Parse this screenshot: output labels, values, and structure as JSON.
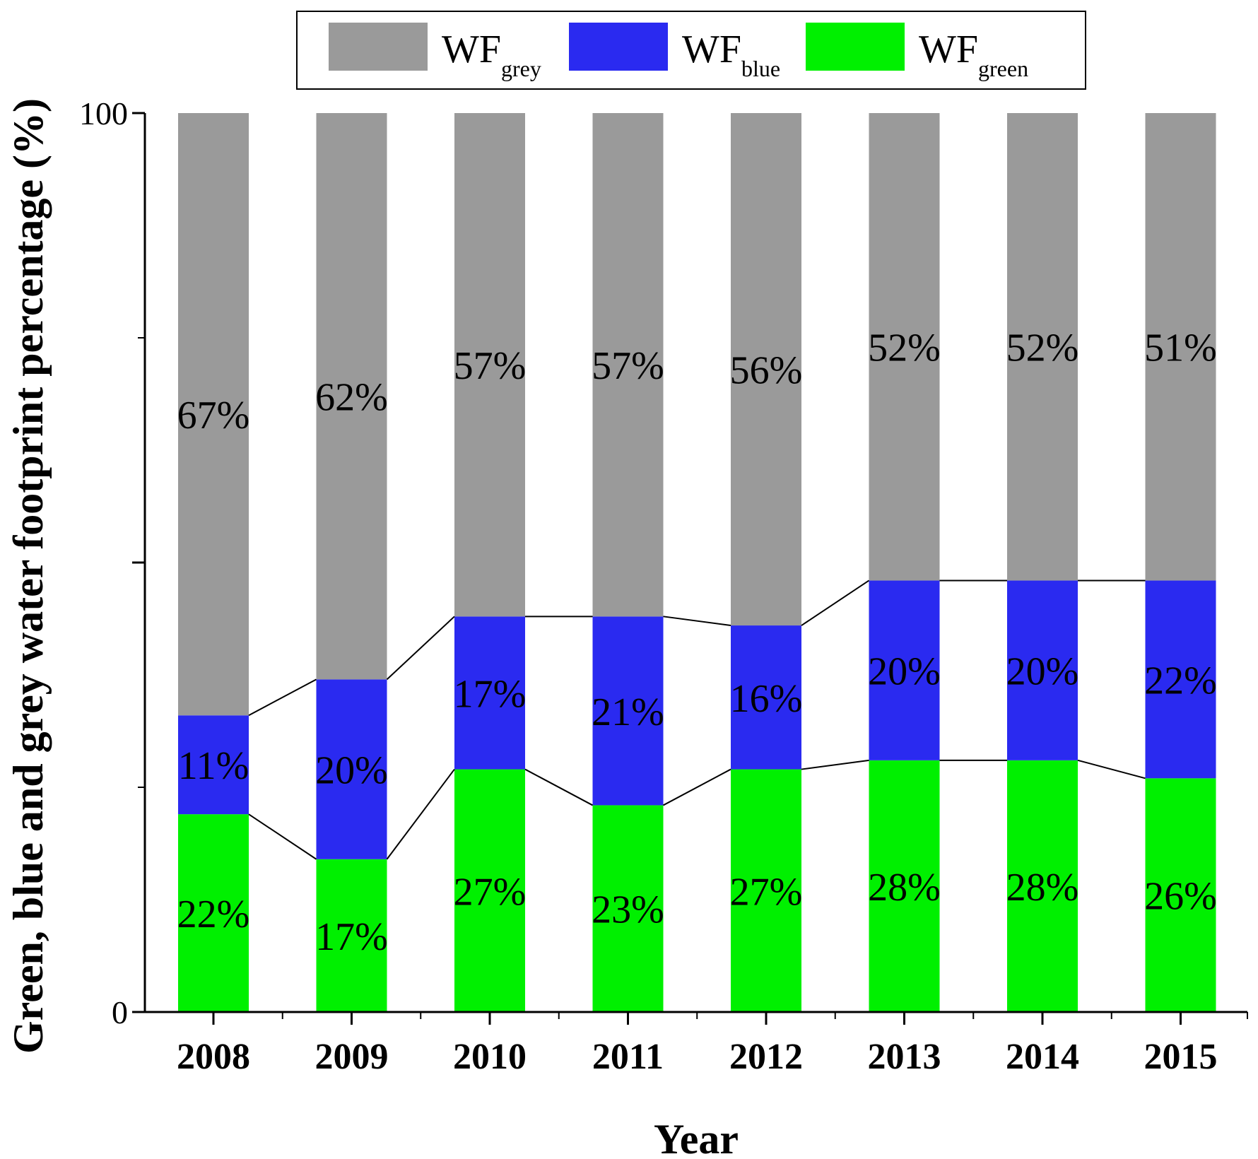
{
  "chart_data": {
    "type": "bar",
    "stacked": true,
    "categories": [
      "2008",
      "2009",
      "2010",
      "2011",
      "2012",
      "2013",
      "2014",
      "2015"
    ],
    "series": [
      {
        "name": "WF green",
        "legend_main": "WF",
        "legend_sub": "green",
        "color": "#00f000",
        "values": [
          22,
          17,
          27,
          23,
          27,
          28,
          28,
          26
        ],
        "labels": [
          "22%",
          "17%",
          "27%",
          "23%",
          "27%",
          "28%",
          "28%",
          "26%"
        ]
      },
      {
        "name": "WF blue",
        "legend_main": "WF",
        "legend_sub": "blue",
        "color": "#2a2af0",
        "values": [
          11,
          20,
          17,
          21,
          16,
          20,
          20,
          22
        ],
        "labels": [
          "11%",
          "20%",
          "17%",
          "21%",
          "16%",
          "20%",
          "20%",
          "22%"
        ]
      },
      {
        "name": "WF grey",
        "legend_main": "WF",
        "legend_sub": "grey",
        "color": "#9a9a9a",
        "values": [
          67,
          62,
          57,
          57,
          56,
          52,
          52,
          51
        ],
        "labels": [
          "67%",
          "62%",
          "57%",
          "57%",
          "56%",
          "52%",
          "52%",
          "51%"
        ]
      }
    ],
    "legend_order": [
      "WF grey",
      "WF blue",
      "WF green"
    ],
    "xlabel": "Year",
    "ylabel": "Green, blue and grey water footprint percentage (%)",
    "ylim": [
      0,
      100
    ],
    "y_ticks": [
      0,
      50,
      100
    ],
    "y_tick_labels": [
      "0",
      "",
      "100"
    ],
    "legend_position": "top-center",
    "connector_lines": true
  }
}
